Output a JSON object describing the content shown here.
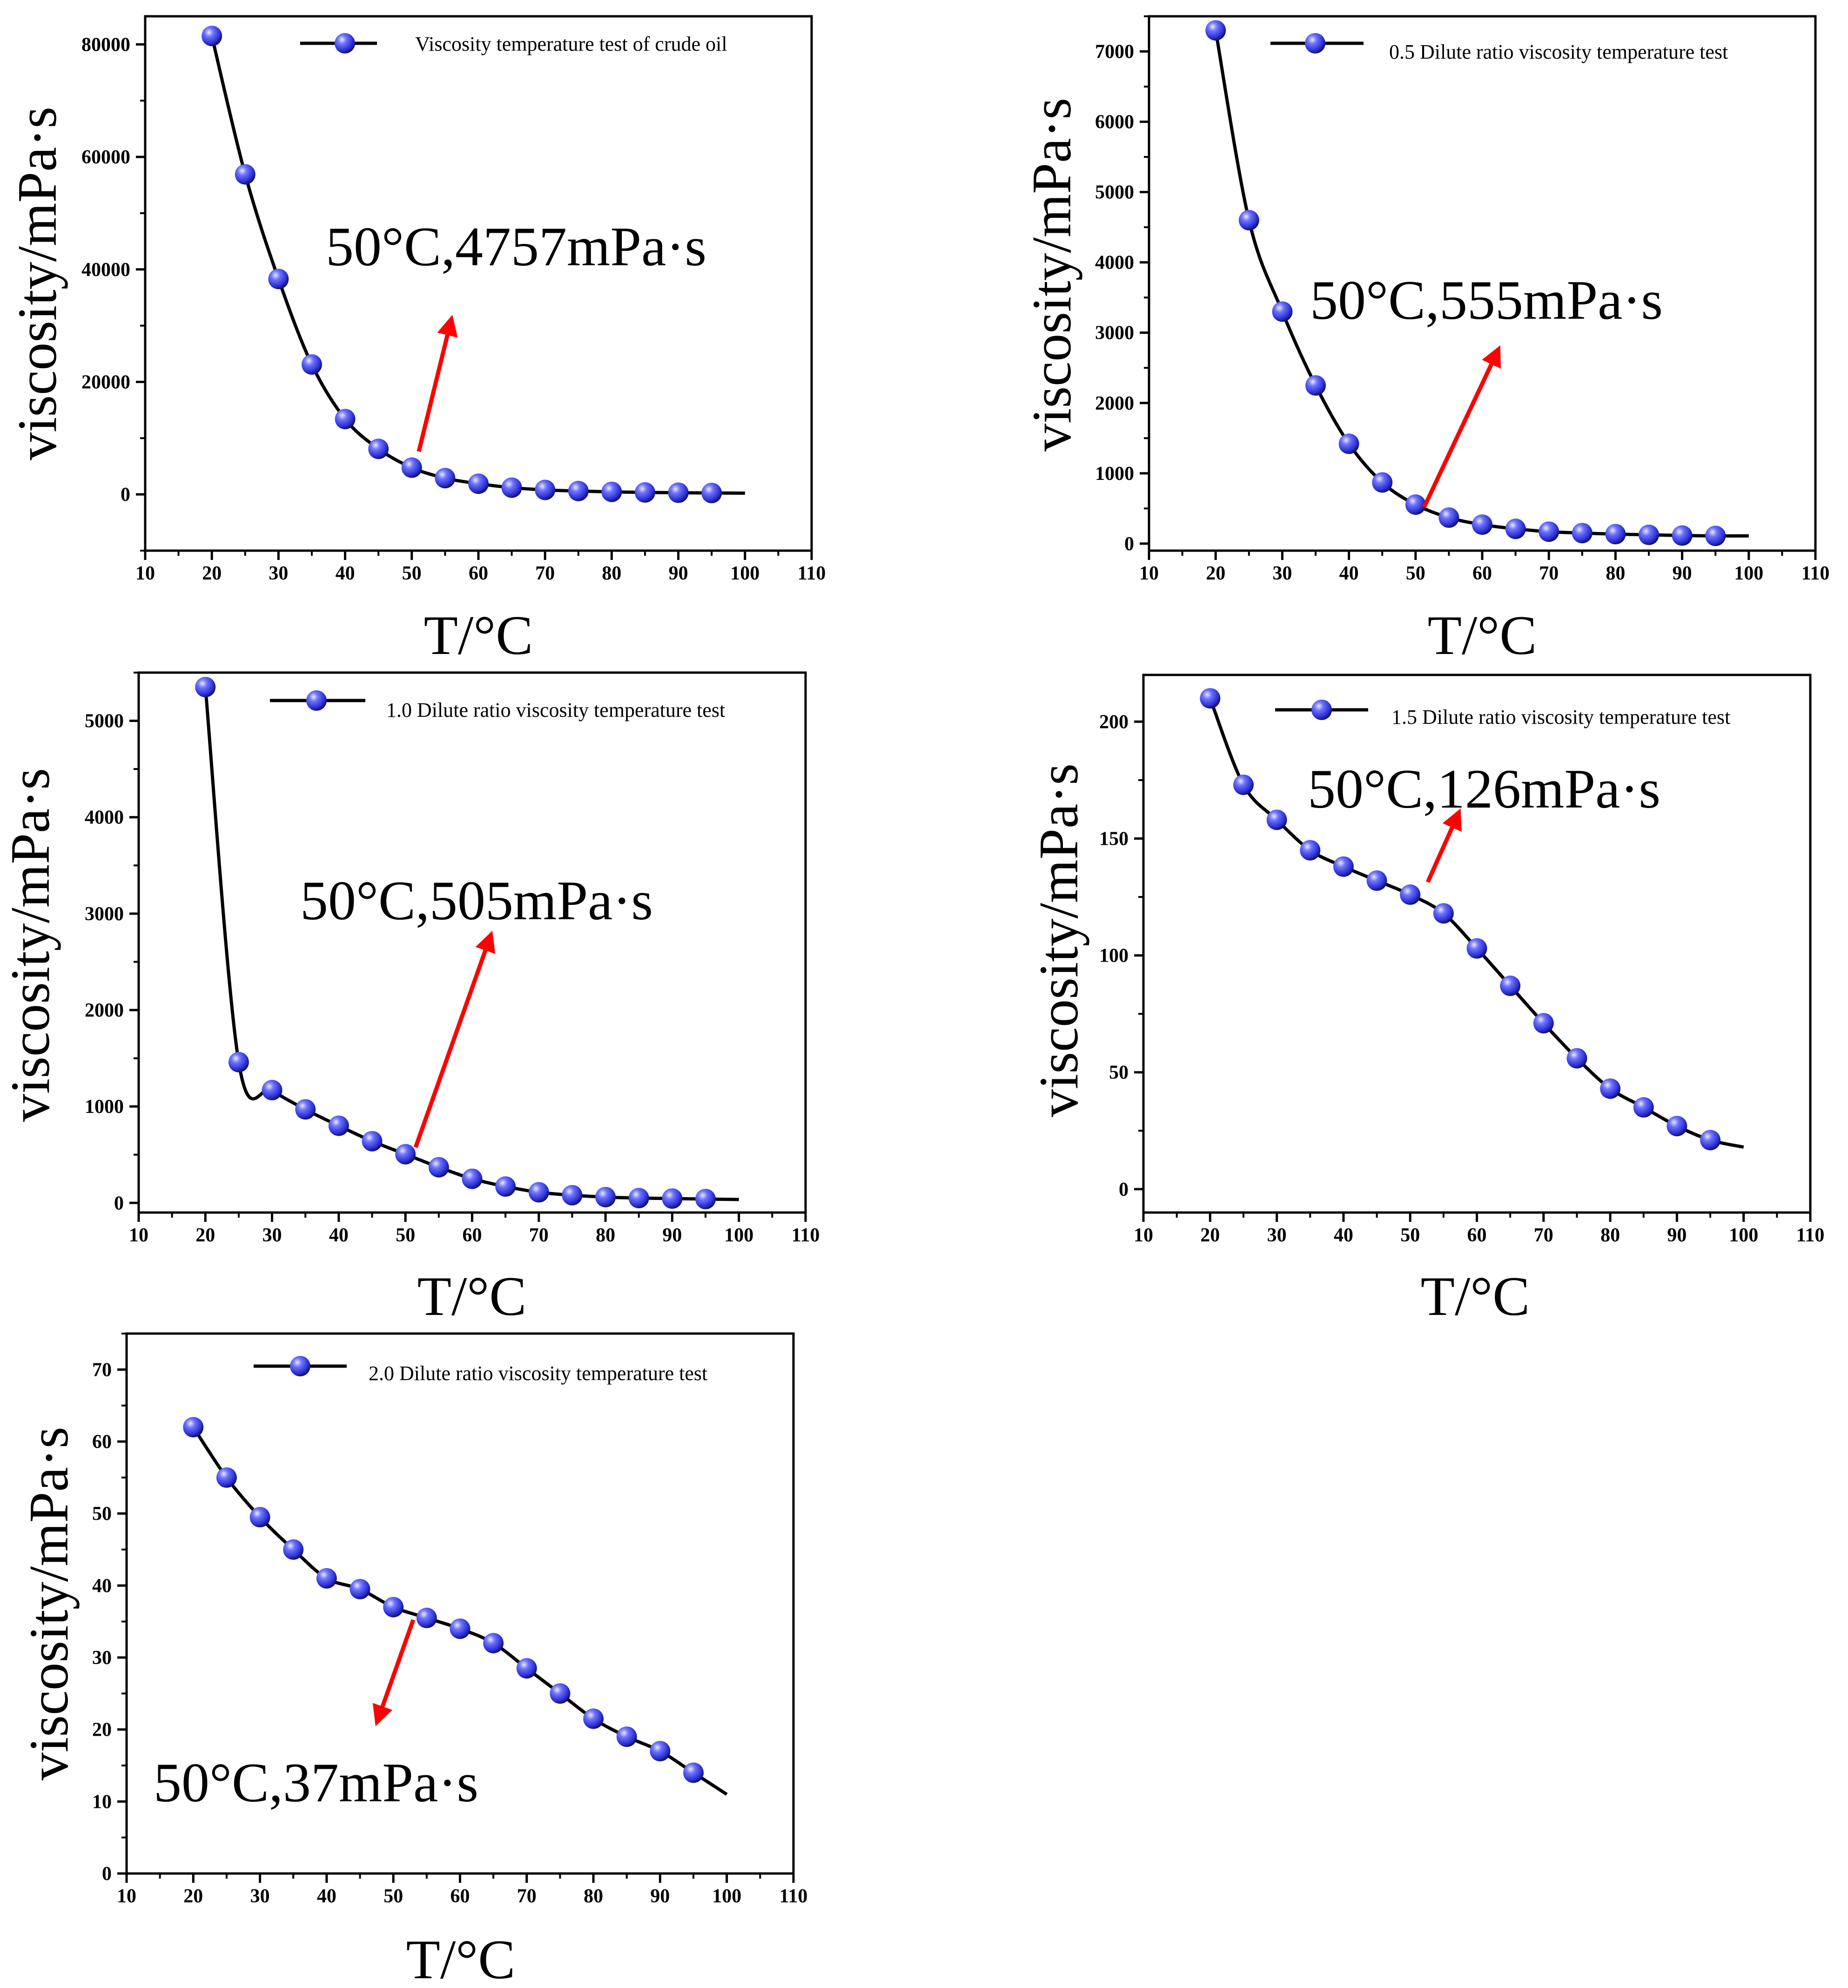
{
  "colors": {
    "marker": "#2a2fd0",
    "marker_highlight": "#e8eaff",
    "marker_dark": "#0a0c5c",
    "line": "#000000",
    "arrow": "#ff0000",
    "axis": "#000000",
    "background": "#ffffff"
  },
  "chart_data": [
    {
      "type": "line",
      "series_name": "Viscosity temperature test of crude oil",
      "xlabel": "T/°C",
      "ylabel": "viscosity/mPa·s",
      "xlim": [
        10,
        110
      ],
      "ylim": [
        -10000,
        85000
      ],
      "xticks": [
        10,
        20,
        30,
        40,
        50,
        60,
        70,
        80,
        90,
        100,
        110
      ],
      "yticks": [
        0,
        20000,
        40000,
        60000,
        80000
      ],
      "x": [
        20,
        25,
        30,
        35,
        40,
        45,
        50,
        55,
        60,
        65,
        70,
        75,
        80,
        85,
        90,
        95
      ],
      "values": [
        81500,
        56900,
        38300,
        23100,
        13400,
        8100,
        4757,
        2900,
        1900,
        1200,
        800,
        600,
        450,
        350,
        300,
        250
      ],
      "curve_end": [
        100,
        220
      ],
      "annotation": {
        "text": "50°C,4757mPa·s",
        "point_x": 50,
        "point_y": 4757
      }
    },
    {
      "type": "line",
      "series_name": "0.5 Dilute ratio viscosity temperature test",
      "xlabel": "T/°C",
      "ylabel": "viscosity/mPa·s",
      "xlim": [
        10,
        110
      ],
      "ylim": [
        -100,
        7500
      ],
      "xticks": [
        10,
        20,
        30,
        40,
        50,
        60,
        70,
        80,
        90,
        100,
        110
      ],
      "yticks": [
        0,
        1000,
        2000,
        3000,
        4000,
        5000,
        6000,
        7000
      ],
      "x": [
        20,
        25,
        30,
        35,
        40,
        45,
        50,
        55,
        60,
        65,
        70,
        75,
        80,
        85,
        90,
        95
      ],
      "values": [
        7300,
        4600,
        3300,
        2250,
        1420,
        870,
        555,
        370,
        270,
        210,
        170,
        150,
        135,
        125,
        115,
        110
      ],
      "curve_end": [
        100,
        110
      ],
      "annotation": {
        "text": "50°C,555mPa·s",
        "point_x": 50,
        "point_y": 555
      }
    },
    {
      "type": "line",
      "series_name": "1.0 Dilute ratio viscosity temperature test",
      "xlabel": "T/°C",
      "ylabel": "viscosity/mPa·s",
      "xlim": [
        10,
        110
      ],
      "ylim": [
        -100,
        5500
      ],
      "xticks": [
        10,
        20,
        30,
        40,
        50,
        60,
        70,
        80,
        90,
        100,
        110
      ],
      "yticks": [
        0,
        1000,
        2000,
        3000,
        4000,
        5000
      ],
      "x": [
        20,
        25,
        30,
        35,
        40,
        45,
        50,
        55,
        60,
        65,
        70,
        75,
        80,
        85,
        90,
        95
      ],
      "values": [
        5350,
        1460,
        1170,
        970,
        800,
        640,
        505,
        370,
        250,
        170,
        110,
        80,
        60,
        50,
        45,
        40
      ],
      "curve_end": [
        100,
        35
      ],
      "annotation": {
        "text": "50°C,505mPa·s",
        "point_x": 50,
        "point_y": 505
      }
    },
    {
      "type": "line",
      "series_name": "1.5 Dilute ratio viscosity temperature test",
      "xlabel": "T/°C",
      "ylabel": "viscosity/mPa·s",
      "xlim": [
        10,
        110
      ],
      "ylim": [
        -10,
        220
      ],
      "xticks": [
        10,
        20,
        30,
        40,
        50,
        60,
        70,
        80,
        90,
        100,
        110
      ],
      "yticks": [
        0,
        50,
        100,
        150,
        200
      ],
      "x": [
        20,
        25,
        30,
        35,
        40,
        45,
        50,
        55,
        60,
        65,
        70,
        75,
        80,
        85,
        90,
        95
      ],
      "values": [
        210,
        173,
        158,
        145,
        138,
        132,
        126,
        118,
        103,
        87,
        71,
        56,
        43,
        35,
        27,
        21
      ],
      "curve_end": [
        100,
        18
      ],
      "annotation": {
        "text": "50°C,126mPa·s",
        "point_x": 50,
        "point_y": 126
      }
    },
    {
      "type": "line",
      "series_name": "2.0 Dilute ratio viscosity temperature test",
      "xlabel": "T/°C",
      "ylabel": "viscosity/mPa·s",
      "xlim": [
        10,
        110
      ],
      "ylim": [
        0,
        75
      ],
      "xticks": [
        10,
        20,
        30,
        40,
        50,
        60,
        70,
        80,
        90,
        100,
        110
      ],
      "yticks": [
        0,
        10,
        20,
        30,
        40,
        50,
        60,
        70
      ],
      "x": [
        20,
        25,
        30,
        35,
        40,
        45,
        50,
        55,
        60,
        65,
        70,
        75,
        80,
        85,
        90,
        95
      ],
      "values": [
        62,
        55,
        49.5,
        45,
        41,
        39.5,
        37,
        35.5,
        34,
        32,
        28.5,
        25,
        21.5,
        19,
        17,
        14
      ],
      "curve_end": [
        100,
        11
      ],
      "annotation": {
        "text": "50°C,37mPa·s",
        "point_x": 50,
        "point_y": 37
      }
    }
  ]
}
